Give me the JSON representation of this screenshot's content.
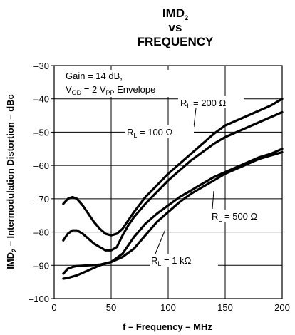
{
  "chart_data": {
    "type": "line",
    "title": {
      "line1_main": "IMD",
      "line1_sub": "2",
      "line2": "vs",
      "line3": "FREQUENCY"
    },
    "xlabel": "f – Frequency – MHz",
    "ylabel": {
      "main": "IMD",
      "sub": "2",
      "rest": " – Intermodulation Distortion – dBc"
    },
    "xlim": [
      0,
      200
    ],
    "ylim": [
      -100,
      -30
    ],
    "x_ticks": [
      0,
      50,
      100,
      150,
      200
    ],
    "x_tick_labels": [
      "0",
      "50",
      "100",
      "150",
      "200"
    ],
    "y_ticks": [
      -100,
      -90,
      -80,
      -70,
      -60,
      -50,
      -40,
      -30
    ],
    "y_tick_labels": [
      "–100",
      "–90",
      "–80",
      "–70",
      "–60",
      "–50",
      "–40",
      "–30"
    ],
    "grid": true,
    "conditions": {
      "line1": "Gain = 14 dB,",
      "line2_a": "V",
      "line2_sub1": "OD",
      "line2_b": " = 2 V",
      "line2_sub2": "PP",
      "line2_c": " Envelope"
    },
    "series": [
      {
        "name": "R_L = 200 Ω",
        "label": {
          "a": "R",
          "sub": "L",
          "b": " = 200 Ω"
        },
        "x": [
          8,
          12,
          16,
          20,
          25,
          30,
          35,
          40,
          45,
          50,
          55,
          60,
          65,
          70,
          80,
          90,
          100,
          110,
          120,
          130,
          140,
          150,
          160,
          170,
          180,
          190,
          200
        ],
        "y": [
          -71.5,
          -70,
          -69.5,
          -70,
          -72,
          -74.5,
          -77,
          -79,
          -80.5,
          -81,
          -80.5,
          -79,
          -76.5,
          -74,
          -69.5,
          -66,
          -62.5,
          -59.5,
          -56.5,
          -53.5,
          -50.5,
          -48,
          -46.5,
          -45,
          -43.5,
          -42,
          -40
        ]
      },
      {
        "name": "R_L = 100 Ω",
        "label": {
          "a": "R",
          "sub": "L",
          "b": " = 100 Ω"
        },
        "x": [
          8,
          12,
          16,
          20,
          25,
          30,
          35,
          40,
          45,
          50,
          55,
          60,
          65,
          70,
          80,
          90,
          100,
          110,
          120,
          130,
          140,
          150,
          160,
          170,
          180,
          190,
          200
        ],
        "y": [
          -82.5,
          -80.5,
          -79.5,
          -79.5,
          -80.5,
          -82,
          -83.5,
          -84.5,
          -85.5,
          -85.5,
          -84.5,
          -81,
          -78,
          -75.5,
          -71.5,
          -68,
          -64.5,
          -61.5,
          -58.5,
          -56,
          -53.5,
          -51.5,
          -50,
          -48.5,
          -47,
          -45.5,
          -44
        ]
      },
      {
        "name": "R_L = 500 Ω",
        "label": {
          "a": "R",
          "sub": "L",
          "b": " = 500 Ω"
        },
        "x": [
          8,
          12,
          16,
          20,
          30,
          40,
          50,
          60,
          70,
          80,
          90,
          100,
          110,
          120,
          130,
          140,
          150,
          160,
          170,
          180,
          190,
          200
        ],
        "y": [
          -92.5,
          -91,
          -90.5,
          -90.2,
          -90,
          -89.8,
          -89,
          -86.5,
          -81.5,
          -77.5,
          -74.5,
          -72,
          -69.5,
          -67.5,
          -65.5,
          -63.5,
          -62,
          -60.5,
          -59,
          -57.5,
          -56.5,
          -55
        ]
      },
      {
        "name": "R_L = 1 kΩ",
        "label": {
          "a": "R",
          "sub": "L",
          "b": " = 1 kΩ"
        },
        "x": [
          8,
          12,
          20,
          30,
          40,
          50,
          60,
          70,
          80,
          90,
          100,
          110,
          120,
          130,
          140,
          150,
          160,
          170,
          180,
          190,
          200
        ],
        "y": [
          -94,
          -93.8,
          -93,
          -91.5,
          -90,
          -89,
          -87.5,
          -85,
          -81,
          -77,
          -74,
          -71,
          -68.5,
          -66.5,
          -64.5,
          -62.5,
          -61,
          -59.5,
          -58,
          -57,
          -56
        ]
      }
    ]
  }
}
